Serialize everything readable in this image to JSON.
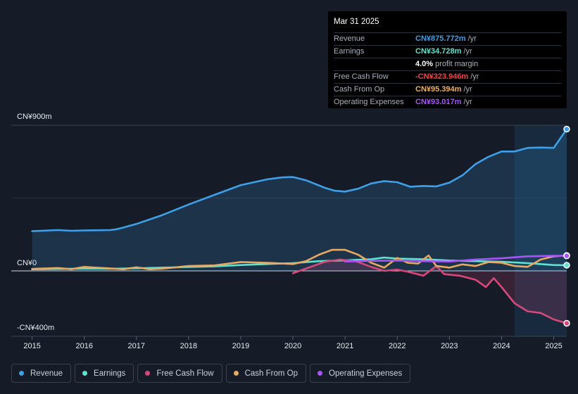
{
  "tooltip": {
    "date": "Mar 31 2025",
    "rows": [
      {
        "label": "Revenue",
        "value": "CN¥875.772m",
        "unit": "/yr",
        "color": "#3da0e8"
      },
      {
        "label": "Earnings",
        "value": "CN¥34.728m",
        "unit": "/yr",
        "color": "#5ee3cf"
      },
      {
        "label": "",
        "value": "4.0%",
        "unit": "profit margin",
        "color": "#ffffff"
      },
      {
        "label": "Free Cash Flow",
        "value": "-CN¥323.946m",
        "unit": "/yr",
        "color": "#f2424b"
      },
      {
        "label": "Cash From Op",
        "value": "CN¥95.394m",
        "unit": "/yr",
        "color": "#f0b060"
      },
      {
        "label": "Operating Expenses",
        "value": "CN¥93.017m",
        "unit": "/yr",
        "color": "#a855f7"
      }
    ]
  },
  "legend": [
    {
      "label": "Revenue",
      "color": "#3da0e8"
    },
    {
      "label": "Earnings",
      "color": "#5ee3cf"
    },
    {
      "label": "Free Cash Flow",
      "color": "#d6487a"
    },
    {
      "label": "Cash From Op",
      "color": "#e8a860"
    },
    {
      "label": "Operating Expenses",
      "color": "#a855f7"
    }
  ],
  "chart_data": {
    "type": "line",
    "ytick_labels": [
      "CN¥900m",
      "CN¥0",
      "-CN¥400m"
    ],
    "ylim": [
      -400,
      900
    ],
    "xlim": [
      2014.6,
      2025.25
    ],
    "x_tick_labels": [
      "2015",
      "2016",
      "2017",
      "2018",
      "2019",
      "2020",
      "2021",
      "2022",
      "2023",
      "2024",
      "2025"
    ],
    "x_tick_values": [
      2015,
      2016,
      2017,
      2018,
      2019,
      2020,
      2021,
      2022,
      2023,
      2024,
      2025
    ],
    "highlight_from": 2024.25,
    "series": [
      {
        "name": "Revenue",
        "color": "#3da0e8",
        "area": true,
        "points": [
          [
            2015.0,
            245
          ],
          [
            2015.5,
            252
          ],
          [
            2015.75,
            248
          ],
          [
            2016.0,
            250
          ],
          [
            2016.5,
            252
          ],
          [
            2016.6,
            256
          ],
          [
            2016.75,
            268
          ],
          [
            2017.0,
            290
          ],
          [
            2017.5,
            345
          ],
          [
            2018.0,
            410
          ],
          [
            2018.5,
            470
          ],
          [
            2019.0,
            530
          ],
          [
            2019.5,
            565
          ],
          [
            2019.8,
            578
          ],
          [
            2020.0,
            580
          ],
          [
            2020.25,
            560
          ],
          [
            2020.6,
            515
          ],
          [
            2020.8,
            495
          ],
          [
            2021.0,
            490
          ],
          [
            2021.25,
            508
          ],
          [
            2021.5,
            540
          ],
          [
            2021.75,
            555
          ],
          [
            2022.0,
            548
          ],
          [
            2022.25,
            520
          ],
          [
            2022.5,
            525
          ],
          [
            2022.75,
            522
          ],
          [
            2023.0,
            545
          ],
          [
            2023.25,
            590
          ],
          [
            2023.5,
            660
          ],
          [
            2023.75,
            705
          ],
          [
            2024.0,
            738
          ],
          [
            2024.25,
            738
          ],
          [
            2024.5,
            760
          ],
          [
            2024.75,
            762
          ],
          [
            2025.0,
            760
          ],
          [
            2025.25,
            876
          ]
        ]
      },
      {
        "name": "Earnings",
        "color": "#5ee3cf",
        "area": false,
        "points": [
          [
            2015.0,
            10
          ],
          [
            2015.5,
            12
          ],
          [
            2016.0,
            14
          ],
          [
            2016.5,
            13
          ],
          [
            2017.0,
            16
          ],
          [
            2017.5,
            20
          ],
          [
            2018.0,
            24
          ],
          [
            2018.5,
            28
          ],
          [
            2019.0,
            36
          ],
          [
            2019.5,
            42
          ],
          [
            2020.0,
            48
          ],
          [
            2020.5,
            60
          ],
          [
            2021.0,
            65
          ],
          [
            2021.5,
            72
          ],
          [
            2021.75,
            82
          ],
          [
            2022.0,
            76
          ],
          [
            2022.5,
            72
          ],
          [
            2023.0,
            64
          ],
          [
            2023.5,
            60
          ],
          [
            2024.0,
            56
          ],
          [
            2024.5,
            48
          ],
          [
            2025.0,
            36
          ],
          [
            2025.25,
            35
          ]
        ]
      },
      {
        "name": "Free Cash Flow",
        "color": "#d6487a",
        "area": true,
        "points": [
          [
            2020.0,
            -15
          ],
          [
            2020.3,
            20
          ],
          [
            2020.6,
            55
          ],
          [
            2020.9,
            70
          ],
          [
            2021.2,
            60
          ],
          [
            2021.5,
            25
          ],
          [
            2021.75,
            0
          ],
          [
            2022.0,
            8
          ],
          [
            2022.2,
            -5
          ],
          [
            2022.5,
            -30
          ],
          [
            2022.75,
            30
          ],
          [
            2022.9,
            -20
          ],
          [
            2023.2,
            -30
          ],
          [
            2023.5,
            -55
          ],
          [
            2023.7,
            -100
          ],
          [
            2023.85,
            -45
          ],
          [
            2024.0,
            -100
          ],
          [
            2024.25,
            -200
          ],
          [
            2024.5,
            -250
          ],
          [
            2024.75,
            -260
          ],
          [
            2025.0,
            -300
          ],
          [
            2025.25,
            -324
          ]
        ]
      },
      {
        "name": "Cash From Op",
        "color": "#e8a860",
        "area": false,
        "points": [
          [
            2015.0,
            12
          ],
          [
            2015.5,
            18
          ],
          [
            2015.75,
            10
          ],
          [
            2016.0,
            25
          ],
          [
            2016.5,
            15
          ],
          [
            2016.75,
            10
          ],
          [
            2017.0,
            22
          ],
          [
            2017.25,
            10
          ],
          [
            2017.5,
            14
          ],
          [
            2018.0,
            30
          ],
          [
            2018.5,
            34
          ],
          [
            2019.0,
            55
          ],
          [
            2019.5,
            50
          ],
          [
            2020.0,
            42
          ],
          [
            2020.25,
            60
          ],
          [
            2020.5,
            100
          ],
          [
            2020.75,
            130
          ],
          [
            2021.0,
            130
          ],
          [
            2021.25,
            100
          ],
          [
            2021.5,
            50
          ],
          [
            2021.75,
            20
          ],
          [
            2022.0,
            80
          ],
          [
            2022.2,
            50
          ],
          [
            2022.4,
            45
          ],
          [
            2022.6,
            95
          ],
          [
            2022.75,
            30
          ],
          [
            2023.0,
            20
          ],
          [
            2023.25,
            40
          ],
          [
            2023.5,
            30
          ],
          [
            2023.75,
            55
          ],
          [
            2024.0,
            50
          ],
          [
            2024.25,
            30
          ],
          [
            2024.5,
            25
          ],
          [
            2024.75,
            70
          ],
          [
            2025.0,
            90
          ],
          [
            2025.25,
            95
          ]
        ]
      },
      {
        "name": "Operating Expenses",
        "color": "#a855f7",
        "area": false,
        "points": [
          [
            2021.0,
            58
          ],
          [
            2021.5,
            62
          ],
          [
            2022.0,
            64
          ],
          [
            2022.5,
            60
          ],
          [
            2023.0,
            58
          ],
          [
            2023.5,
            70
          ],
          [
            2024.0,
            78
          ],
          [
            2024.5,
            90
          ],
          [
            2025.0,
            93
          ],
          [
            2025.25,
            93
          ]
        ]
      }
    ]
  }
}
